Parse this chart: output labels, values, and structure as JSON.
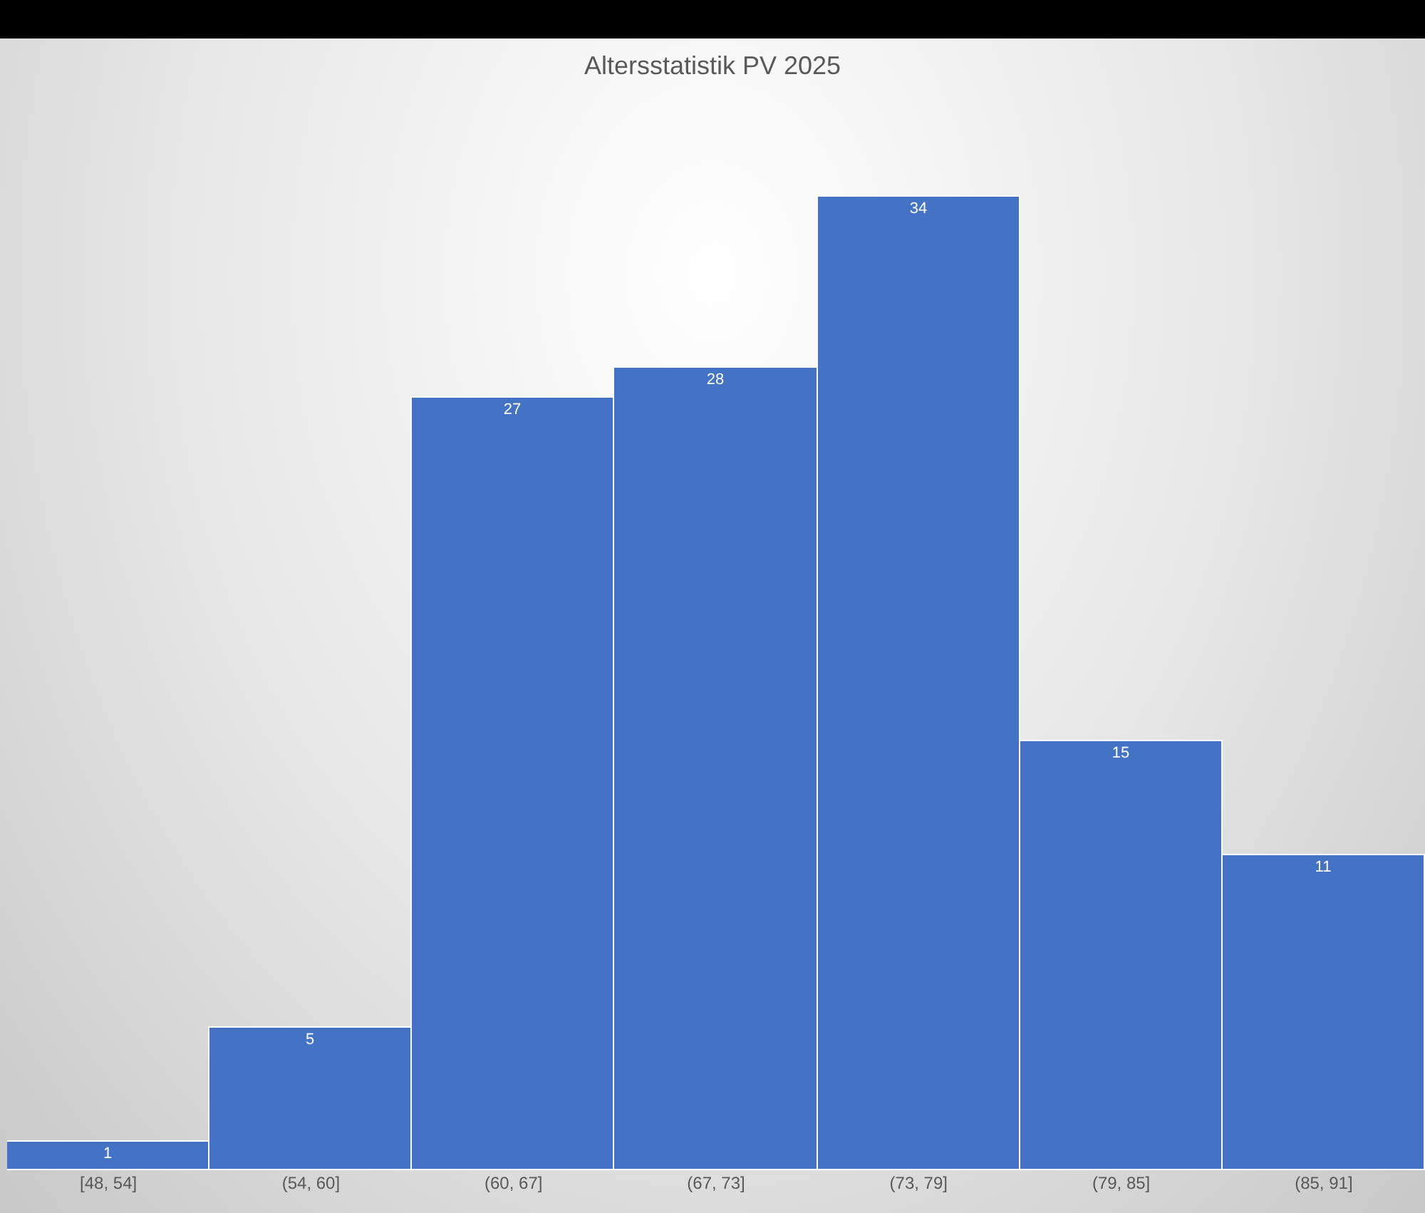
{
  "chart_data": {
    "type": "bar",
    "title": "Altersstatistik PV 2025",
    "categories": [
      "[48, 54]",
      "(54, 60]",
      "(60, 67]",
      "(67, 73]",
      "(73, 79]",
      "(79, 85]",
      "(85, 91]"
    ],
    "values": [
      1,
      5,
      27,
      28,
      34,
      15,
      11
    ],
    "color": "#4472c4",
    "data_labels": true
  }
}
